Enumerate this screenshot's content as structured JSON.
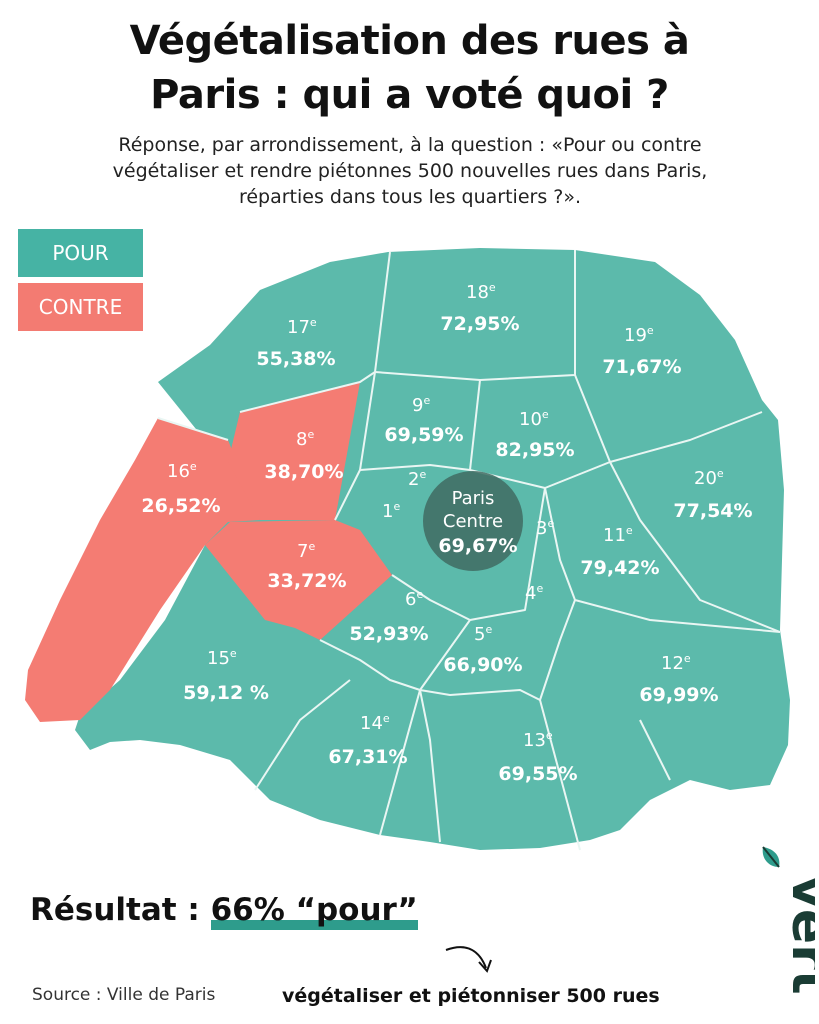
{
  "title_line1": "Végétalisation des rues à",
  "title_line2": "Paris : qui a voté quoi ?",
  "subtitle_line1": "Réponse, par arrondissement, à la question :  «Pour ou contre",
  "subtitle_line2": "végétaliser et rendre piétonnes 500 nouvelles rues dans Paris,",
  "subtitle_line3": "réparties dans tous les quartiers ?».",
  "legend": {
    "pour": {
      "label": "POUR",
      "color": "#46b3a4"
    },
    "contre": {
      "label": "CONTRE",
      "color": "#f37b72"
    }
  },
  "colors": {
    "pour_fill": "#5cbaab",
    "contre_fill": "#f47c73",
    "centre_fill": "#3f6b61",
    "accent": "#2e9c8c"
  },
  "arrondissements": {
    "a17": {
      "label": "17",
      "suffix": "e",
      "value": "55,38%",
      "vote": "pour"
    },
    "a18": {
      "label": "18",
      "suffix": "e",
      "value": "72,95%",
      "vote": "pour"
    },
    "a19": {
      "label": "19",
      "suffix": "e",
      "value": "71,67%",
      "vote": "pour"
    },
    "a8": {
      "label": "8",
      "suffix": "e",
      "value": "38,70%",
      "vote": "contre"
    },
    "a9": {
      "label": "9",
      "suffix": "e",
      "value": "69,59%",
      "vote": "pour"
    },
    "a10": {
      "label": "10",
      "suffix": "e",
      "value": "82,95%",
      "vote": "pour"
    },
    "a16": {
      "label": "16",
      "suffix": "e",
      "value": "26,52%",
      "vote": "contre"
    },
    "a20": {
      "label": "20",
      "suffix": "e",
      "value": "77,54%",
      "vote": "pour"
    },
    "a2": {
      "label": "2",
      "suffix": "e"
    },
    "a1": {
      "label": "1",
      "suffix": "e"
    },
    "a3": {
      "label": "3",
      "suffix": "e"
    },
    "a4": {
      "label": "4",
      "suffix": "e"
    },
    "centre": {
      "line1": "Paris",
      "line2": "Centre",
      "value": "69,67%"
    },
    "a11": {
      "label": "11",
      "suffix": "e",
      "value": "79,42%",
      "vote": "pour"
    },
    "a7": {
      "label": "7",
      "suffix": "e",
      "value": "33,72%",
      "vote": "contre"
    },
    "a6": {
      "label": "6",
      "suffix": "e",
      "value": "52,93%",
      "vote": "pour"
    },
    "a5": {
      "label": "5",
      "suffix": "e",
      "value": "66,90%",
      "vote": "pour"
    },
    "a15": {
      "label": "15",
      "suffix": "e",
      "value": "59,12 %",
      "vote": "pour"
    },
    "a12": {
      "label": "12",
      "suffix": "e",
      "value": "69,99%",
      "vote": "pour"
    },
    "a14": {
      "label": "14",
      "suffix": "e",
      "value": "67,31%",
      "vote": "pour"
    },
    "a13": {
      "label": "13",
      "suffix": "e",
      "value": "69,55%",
      "vote": "pour"
    }
  },
  "result": {
    "label": "Résultat :",
    "value": "66% “pour”"
  },
  "note": "végétaliser et piétonniser 500 rues",
  "source": "Source : Ville de Paris",
  "logo": {
    "text": "vert",
    "icon": "leaf-icon"
  }
}
